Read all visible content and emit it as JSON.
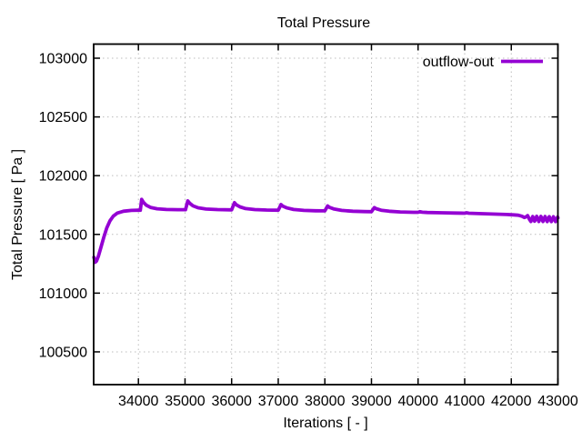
{
  "title": "Total Pressure",
  "legend": {
    "label": "outflow-out",
    "color": "#9400D3",
    "position": "top-right"
  },
  "axes": {
    "x": {
      "label": "Iterations [ - ]",
      "ticks": [
        34000,
        35000,
        36000,
        37000,
        38000,
        39000,
        40000,
        41000,
        42000,
        43000
      ]
    },
    "y": {
      "label": "Total Pressure [ Pa ]",
      "ticks": [
        100500,
        101000,
        101500,
        102000,
        102500,
        103000
      ]
    }
  },
  "colors": {
    "line": "#9400D3",
    "grid": "#bcbcbc",
    "border": "#000000"
  },
  "chart_data": {
    "type": "line",
    "title": "Total Pressure",
    "xlabel": "Iterations [ - ]",
    "ylabel": "Total Pressure [ Pa ]",
    "xlim": [
      33040,
      43000
    ],
    "ylim": [
      100221,
      103120
    ],
    "x_ticks": [
      34000,
      35000,
      36000,
      37000,
      38000,
      39000,
      40000,
      41000,
      42000,
      43000
    ],
    "y_ticks": [
      100500,
      101000,
      101500,
      102000,
      102500,
      103000
    ],
    "grid": true,
    "grid_style": "dotted",
    "legend_position": "top-right",
    "series": [
      {
        "name": "outflow-out",
        "color": "#9400D3",
        "points": [
          [
            33045,
            101305
          ],
          [
            33070,
            101262
          ],
          [
            33100,
            101272
          ],
          [
            33140,
            101312
          ],
          [
            33200,
            101395
          ],
          [
            33260,
            101480
          ],
          [
            33320,
            101555
          ],
          [
            33390,
            101615
          ],
          [
            33460,
            101655
          ],
          [
            33550,
            101682
          ],
          [
            33680,
            101697
          ],
          [
            33850,
            101704
          ],
          [
            34000,
            101706
          ],
          [
            34040,
            101706
          ],
          [
            34070,
            101798
          ],
          [
            34110,
            101772
          ],
          [
            34170,
            101748
          ],
          [
            34260,
            101730
          ],
          [
            34400,
            101718
          ],
          [
            34600,
            101712
          ],
          [
            34850,
            101710
          ],
          [
            35010,
            101710
          ],
          [
            35060,
            101785
          ],
          [
            35100,
            101765
          ],
          [
            35170,
            101743
          ],
          [
            35280,
            101727
          ],
          [
            35450,
            101716
          ],
          [
            35700,
            101711
          ],
          [
            36000,
            101709
          ],
          [
            36060,
            101770
          ],
          [
            36100,
            101752
          ],
          [
            36180,
            101734
          ],
          [
            36300,
            101720
          ],
          [
            36500,
            101711
          ],
          [
            36750,
            101707
          ],
          [
            37000,
            101706
          ],
          [
            37060,
            101754
          ],
          [
            37100,
            101740
          ],
          [
            37190,
            101725
          ],
          [
            37330,
            101712
          ],
          [
            37550,
            101704
          ],
          [
            37800,
            101701
          ],
          [
            38000,
            101700
          ],
          [
            38060,
            101742
          ],
          [
            38100,
            101730
          ],
          [
            38200,
            101716
          ],
          [
            38360,
            101704
          ],
          [
            38600,
            101697
          ],
          [
            38850,
            101694
          ],
          [
            39000,
            101693
          ],
          [
            39060,
            101728
          ],
          [
            39100,
            101719
          ],
          [
            39210,
            101706
          ],
          [
            39380,
            101697
          ],
          [
            39620,
            101691
          ],
          [
            39900,
            101688
          ],
          [
            40000,
            101688
          ],
          [
            40040,
            101693
          ],
          [
            40090,
            101689
          ],
          [
            40200,
            101686
          ],
          [
            40500,
            101684
          ],
          [
            40800,
            101682
          ],
          [
            41000,
            101680
          ],
          [
            41040,
            101684
          ],
          [
            41090,
            101680
          ],
          [
            41300,
            101677
          ],
          [
            41600,
            101673
          ],
          [
            41900,
            101669
          ],
          [
            42050,
            101666
          ],
          [
            42150,
            101663
          ],
          [
            42230,
            101655
          ],
          [
            42280,
            101644
          ],
          [
            42320,
            101650
          ],
          [
            42350,
            101660
          ],
          [
            42390,
            101628
          ],
          [
            42420,
            101610
          ],
          [
            42460,
            101652
          ],
          [
            42500,
            101612
          ],
          [
            42545,
            101654
          ],
          [
            42590,
            101610
          ],
          [
            42635,
            101653
          ],
          [
            42680,
            101610
          ],
          [
            42725,
            101652
          ],
          [
            42770,
            101609
          ],
          [
            42815,
            101651
          ],
          [
            42860,
            101609
          ],
          [
            42905,
            101650
          ],
          [
            42950,
            101609
          ],
          [
            42995,
            101648
          ],
          [
            43000,
            101640
          ]
        ]
      }
    ]
  }
}
